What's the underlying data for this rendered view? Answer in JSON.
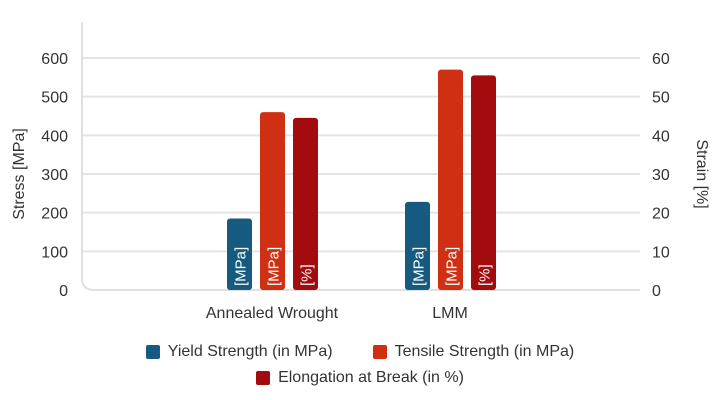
{
  "chart_data": {
    "type": "bar",
    "categories": [
      "Annealed Wrought",
      "LMM"
    ],
    "series": [
      {
        "name": "Yield Strength (in MPa)",
        "values": [
          185,
          228
        ],
        "axis": "left",
        "unit_label": "[MPa]",
        "color": "#175a80"
      },
      {
        "name": "Tensile Strength (in MPa)",
        "values": [
          460,
          570
        ],
        "axis": "left",
        "unit_label": "[MPa]",
        "color": "#cf3014"
      },
      {
        "name": "Elongation at Break (in %)",
        "values": [
          44.5,
          55.5
        ],
        "axis": "right",
        "unit_label": "[%]",
        "color": "#a30c0f"
      }
    ],
    "ylabel": "Stress [MPa]",
    "ylim": [
      0,
      600
    ],
    "yticks": [
      0,
      100,
      200,
      300,
      400,
      500,
      600
    ],
    "y2label": "Strain [%]",
    "y2lim": [
      0,
      60
    ],
    "y2ticks": [
      0,
      10,
      20,
      30,
      40,
      50,
      60
    ],
    "grid": true,
    "legend": "bottom"
  }
}
